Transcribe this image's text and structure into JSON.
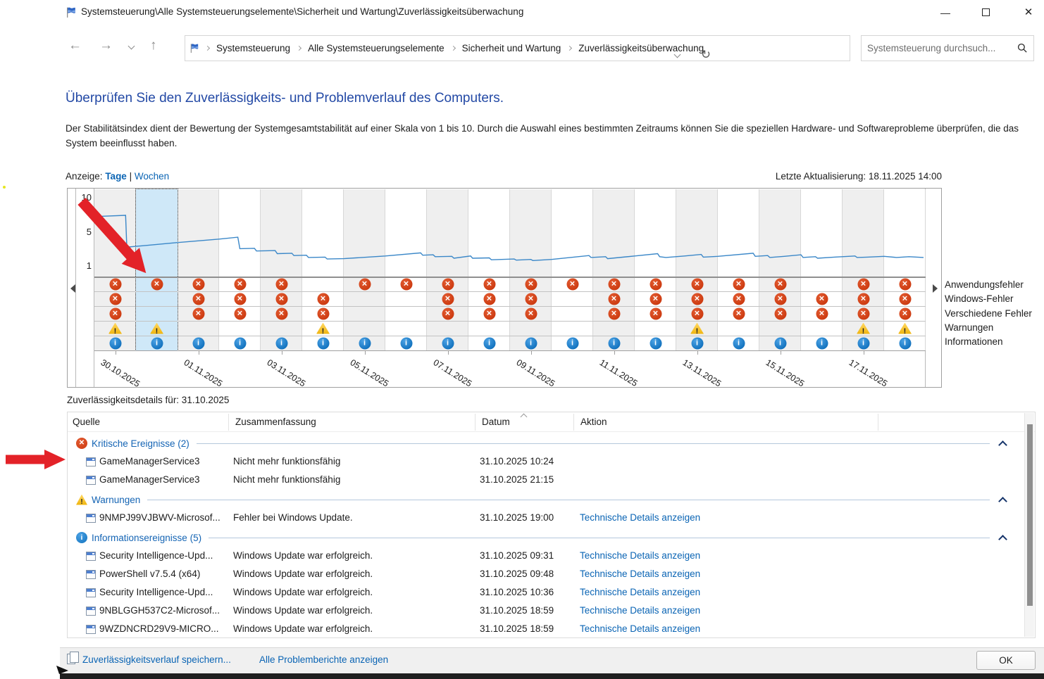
{
  "window": {
    "title": "Systemsteuerung\\Alle Systemsteuerungselemente\\Sicherheit und Wartung\\Zuverlässigkeitsüberwachung",
    "minimize": "—",
    "maximize": "",
    "close": "✕"
  },
  "toolbar": {
    "breadcrumbs": [
      "Systemsteuerung",
      "Alle Systemsteuerungselemente",
      "Sicherheit und Wartung",
      "Zuverlässigkeitsüberwachung"
    ],
    "search_placeholder": "Systemsteuerung durchsuch..."
  },
  "page": {
    "heading": "Überprüfen Sie den Zuverlässigkeits- und Problemverlauf des Computers.",
    "description": "Der Stabilitätsindex dient der Bewertung der Systemgesamtstabilität auf einer Skala von 1 bis 10. Durch die Auswahl eines bestimmten Zeitraums können Sie die speziellen Hardware- und Softwareprobleme überprüfen, die das System beeinflusst haben.",
    "view_label": "Anzeige:",
    "view_days": "Tage",
    "view_separator": "|",
    "view_weeks": "Wochen",
    "last_update": "Letzte Aktualisierung: 18.11.2025 14:00"
  },
  "chart_data": {
    "type": "line",
    "title": "Stabilitätsindex (Tagesansicht)",
    "ylim": [
      1,
      10
    ],
    "yticks": [
      10,
      5,
      1
    ],
    "selected_day": "31.10.2025",
    "selected_column_index": 1,
    "days": [
      "30.10.2025",
      "31.10.2025",
      "01.11.2025",
      "02.11.2025",
      "03.11.2025",
      "04.11.2025",
      "05.11.2025",
      "06.11.2025",
      "07.11.2025",
      "08.11.2025",
      "09.11.2025",
      "10.11.2025",
      "11.11.2025",
      "12.11.2025",
      "13.11.2025",
      "14.11.2025",
      "15.11.2025",
      "16.11.2025",
      "17.11.2025",
      "18.11.2025"
    ],
    "x_label_indices": [
      0,
      2,
      4,
      6,
      8,
      10,
      12,
      14,
      16,
      18
    ],
    "legend": [
      "Anwendungsfehler",
      "Windows-Fehler",
      "Verschiedene Fehler",
      "Warnungen",
      "Informationen"
    ],
    "events": {
      "Anwendungsfehler": [
        1,
        1,
        1,
        1,
        1,
        0,
        1,
        1,
        1,
        1,
        1,
        1,
        1,
        1,
        1,
        1,
        1,
        0,
        1,
        1
      ],
      "Windows-Fehler": [
        1,
        0,
        1,
        1,
        1,
        1,
        0,
        0,
        1,
        1,
        1,
        0,
        1,
        1,
        1,
        1,
        1,
        1,
        1,
        1
      ],
      "Verschiedene Fehler": [
        1,
        0,
        1,
        1,
        1,
        1,
        0,
        0,
        1,
        1,
        1,
        0,
        1,
        1,
        1,
        1,
        1,
        1,
        1,
        1
      ],
      "Warnungen": [
        1,
        1,
        0,
        0,
        0,
        1,
        0,
        0,
        0,
        0,
        0,
        0,
        0,
        0,
        1,
        0,
        0,
        0,
        1,
        1
      ],
      "Informationen": [
        1,
        1,
        1,
        1,
        1,
        1,
        1,
        1,
        1,
        1,
        1,
        1,
        1,
        1,
        1,
        1,
        1,
        1,
        1,
        1
      ]
    },
    "stability_line": [
      [
        0.05,
        7.55
      ],
      [
        0.75,
        7.7
      ],
      [
        0.78,
        3.55
      ],
      [
        1.2,
        3.75
      ],
      [
        2.0,
        4.15
      ],
      [
        3.0,
        4.6
      ],
      [
        3.45,
        4.85
      ],
      [
        3.5,
        3.35
      ],
      [
        3.85,
        3.4
      ],
      [
        3.9,
        3.05
      ],
      [
        4.35,
        3.1
      ],
      [
        4.4,
        2.7
      ],
      [
        4.75,
        2.75
      ],
      [
        4.8,
        2.45
      ],
      [
        5.1,
        2.5
      ],
      [
        5.15,
        2.2
      ],
      [
        5.55,
        2.25
      ],
      [
        5.6,
        2.0
      ],
      [
        6.0,
        2.05
      ],
      [
        7.0,
        2.4
      ],
      [
        7.85,
        2.8
      ],
      [
        7.9,
        2.5
      ],
      [
        8.15,
        2.55
      ],
      [
        8.2,
        2.3
      ],
      [
        8.6,
        2.35
      ],
      [
        8.65,
        2.1
      ],
      [
        9.05,
        2.4
      ],
      [
        9.1,
        2.1
      ],
      [
        9.5,
        2.15
      ],
      [
        9.55,
        1.9
      ],
      [
        9.8,
        1.95
      ],
      [
        10.1,
        2.0
      ],
      [
        10.15,
        1.85
      ],
      [
        10.5,
        1.95
      ],
      [
        10.55,
        1.8
      ],
      [
        11.0,
        1.95
      ],
      [
        11.9,
        2.45
      ],
      [
        11.95,
        2.2
      ],
      [
        12.3,
        2.3
      ],
      [
        12.35,
        2.05
      ],
      [
        13.0,
        2.4
      ],
      [
        13.55,
        2.7
      ],
      [
        13.6,
        2.3
      ],
      [
        13.75,
        2.2
      ],
      [
        14.2,
        2.4
      ],
      [
        14.6,
        2.6
      ],
      [
        14.65,
        2.25
      ],
      [
        15.0,
        2.35
      ],
      [
        15.85,
        2.75
      ],
      [
        15.9,
        2.35
      ],
      [
        16.2,
        2.45
      ],
      [
        16.25,
        2.2
      ],
      [
        16.6,
        2.35
      ],
      [
        17.0,
        2.55
      ],
      [
        17.05,
        2.2
      ],
      [
        17.35,
        2.3
      ],
      [
        17.4,
        2.1
      ],
      [
        17.8,
        2.25
      ],
      [
        18.3,
        2.4
      ],
      [
        18.35,
        2.2
      ],
      [
        18.6,
        2.25
      ],
      [
        19.0,
        2.35
      ],
      [
        19.3,
        2.2
      ],
      [
        19.6,
        2.3
      ],
      [
        19.95,
        2.2
      ]
    ]
  },
  "details": {
    "title": "Zuverlässigkeitsdetails für: 31.10.2025",
    "columns": [
      "Quelle",
      "Zusammenfassung",
      "Datum",
      "Aktion"
    ],
    "groups": [
      {
        "type": "err",
        "label": "Kritische Ereignisse (2)",
        "rows": [
          {
            "source": "GameManagerService3",
            "summary": "Nicht mehr funktionsfähig",
            "date": "31.10.2025 10:24",
            "action": ""
          },
          {
            "source": "GameManagerService3",
            "summary": "Nicht mehr funktionsfähig",
            "date": "31.10.2025 21:15",
            "action": ""
          }
        ]
      },
      {
        "type": "warn",
        "label": "Warnungen",
        "rows": [
          {
            "source": "9NMPJ99VJBWV-Microsof...",
            "summary": "Fehler bei Windows Update.",
            "date": "31.10.2025 19:00",
            "action": "Technische Details anzeigen"
          }
        ]
      },
      {
        "type": "info",
        "label": "Informationsereignisse (5)",
        "rows": [
          {
            "source": "Security Intelligence-Upd...",
            "summary": "Windows Update war erfolgreich.",
            "date": "31.10.2025 09:31",
            "action": "Technische Details anzeigen"
          },
          {
            "source": "PowerShell v7.5.4 (x64)",
            "summary": "Windows Update war erfolgreich.",
            "date": "31.10.2025 09:48",
            "action": "Technische Details anzeigen"
          },
          {
            "source": "Security Intelligence-Upd...",
            "summary": "Windows Update war erfolgreich.",
            "date": "31.10.2025 10:36",
            "action": "Technische Details anzeigen"
          },
          {
            "source": "9NBLGGH537C2-Microsof...",
            "summary": "Windows Update war erfolgreich.",
            "date": "31.10.2025 18:59",
            "action": "Technische Details anzeigen"
          },
          {
            "source": "9WZDNCRD29V9-MICRO...",
            "summary": "Windows Update war erfolgreich.",
            "date": "31.10.2025 18:59",
            "action": "Technische Details anzeigen"
          }
        ]
      }
    ]
  },
  "footer": {
    "save_link": "Zuverlässigkeitsverlauf speichern...",
    "reports_link": "Alle Problemberichte anzeigen",
    "ok_label": "OK"
  },
  "colors": {
    "heading_blue": "#2349a5",
    "link_blue": "#0a64b4",
    "error_red": "#cc3a10",
    "warning_yellow": "#f0b40c",
    "info_blue": "#1272be",
    "selection_blue": "#cfe8f8",
    "line_blue": "#3a87c8",
    "annotation_red": "#e32228"
  }
}
